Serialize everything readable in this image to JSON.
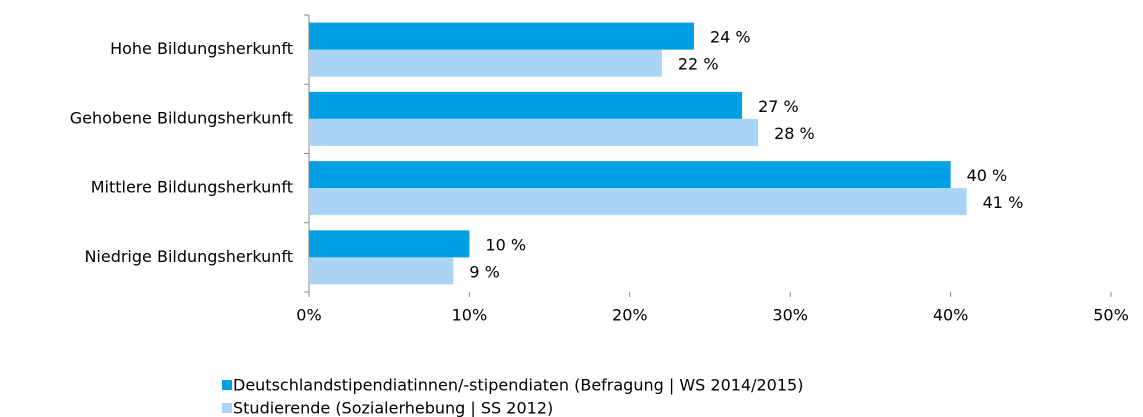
{
  "chart_data": {
    "type": "hbar",
    "categories": [
      "Hohe Bildungsherkunft",
      "Gehobene Bildungsherkunft",
      "Mittlere Bildungsherkunft",
      "Niedrige Bildungsherkunft"
    ],
    "series": [
      {
        "name": "Deutschlandstipendiatinnen/-stipendiaten (Befragung | WS 2014/2015)",
        "color": "#009fe3",
        "values": [
          24,
          27,
          40,
          10
        ],
        "value_labels": [
          "24 %",
          "27 %",
          "40 %",
          "10 %"
        ]
      },
      {
        "name": "Studierende (Sozialerhebung | SS 2012)",
        "color": "#a9d4f5",
        "values": [
          22,
          28,
          41,
          9
        ],
        "value_labels": [
          "22 %",
          "28 %",
          "41 %",
          "9 %"
        ]
      }
    ],
    "xlim": [
      0,
      50
    ],
    "xticks": [
      {
        "value": 0,
        "label": "0%"
      },
      {
        "value": 10,
        "label": "10%"
      },
      {
        "value": 20,
        "label": "20%"
      },
      {
        "value": 30,
        "label": "30%"
      },
      {
        "value": 40,
        "label": "40%"
      },
      {
        "value": 50,
        "label": "50%"
      }
    ],
    "legend": "bottom"
  }
}
